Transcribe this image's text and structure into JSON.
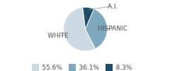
{
  "chart_data": {
    "type": "pie",
    "categories": [
      "WHITE",
      "HISPANIC",
      "A.I."
    ],
    "values": [
      55.6,
      36.1,
      8.3
    ],
    "value_labels": [
      "55.6%",
      "36.1%",
      "8.3%"
    ],
    "colors": [
      "#ccd8e2",
      "#7da8be",
      "#1e4d6b"
    ],
    "legend": "bottom"
  }
}
